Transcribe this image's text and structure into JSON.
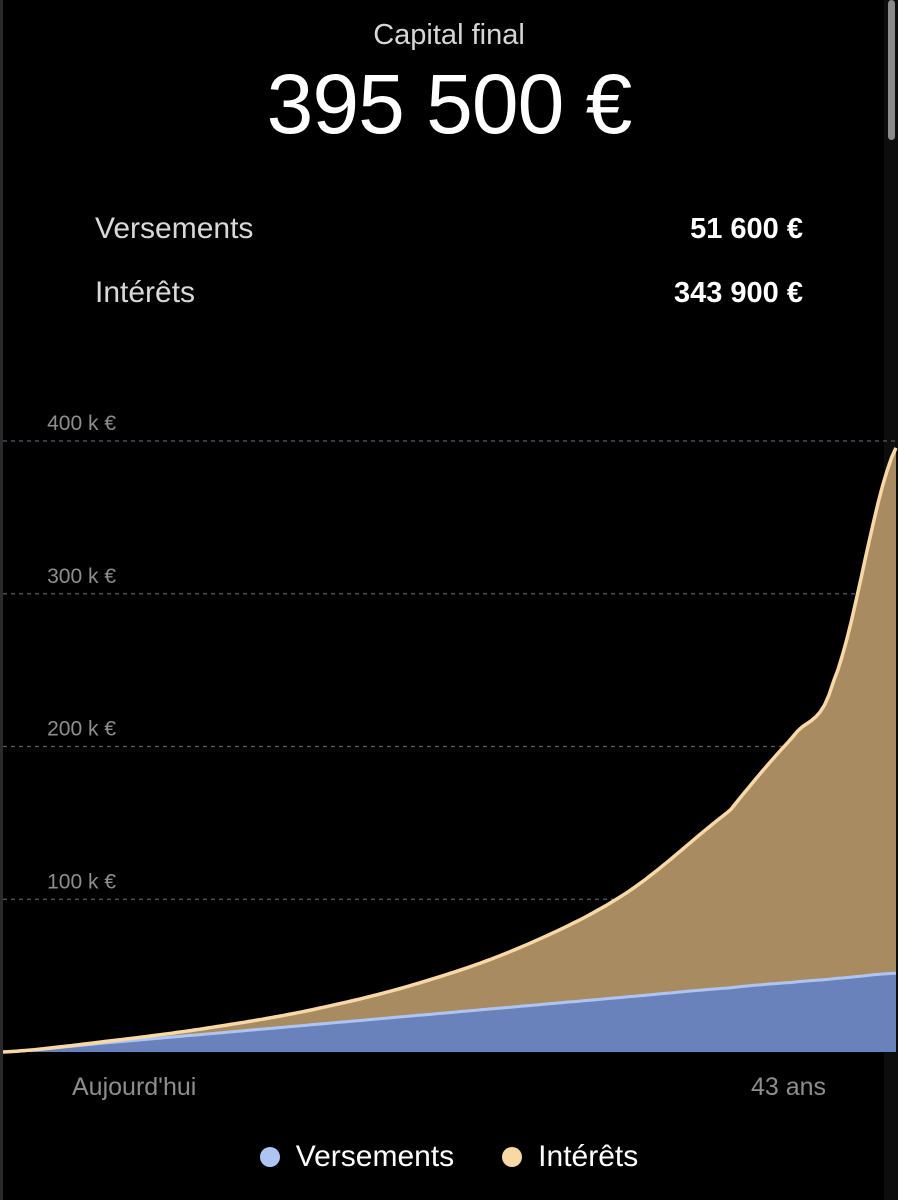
{
  "header": {
    "label": "Capital final",
    "value": "395 500 €"
  },
  "summary": [
    {
      "label": "Versements",
      "value": "51 600 €"
    },
    {
      "label": "Intérêts",
      "value": "343 900 €"
    }
  ],
  "colors": {
    "background": "#000000",
    "versements": "#aec5f3",
    "versements_fill": "#6a82bb",
    "interets": "#f8d9a5",
    "interets_fill": "#a98b61",
    "grid": "#5a5a66",
    "axis_text": "#8e8e8e"
  },
  "chart_data": {
    "type": "area",
    "stacked": true,
    "x_labels": [
      "Aujourd'hui",
      "43 ans"
    ],
    "x_range": [
      0,
      43
    ],
    "ylim": [
      0,
      400000
    ],
    "y_ticks": [
      {
        "value": 100000,
        "label": "100 k €"
      },
      {
        "value": 200000,
        "label": "200 k €"
      },
      {
        "value": 300000,
        "label": "300 k €"
      },
      {
        "value": 400000,
        "label": "400 k €"
      }
    ],
    "grid": "horizontal-dashed",
    "legend_position": "bottom",
    "x": [
      0,
      5,
      10,
      15,
      20,
      25,
      30,
      35,
      38,
      40,
      43
    ],
    "series": [
      {
        "name": "Versements",
        "values": [
          0,
          6000,
          12000,
          18000,
          24000,
          30000,
          36000,
          42000,
          45600,
          48000,
          51600
        ]
      },
      {
        "name": "Intérêts",
        "values": [
          0,
          1000,
          4000,
          10000,
          21000,
          39000,
          68000,
          116000,
          160000,
          195000,
          343900
        ]
      }
    ]
  }
}
